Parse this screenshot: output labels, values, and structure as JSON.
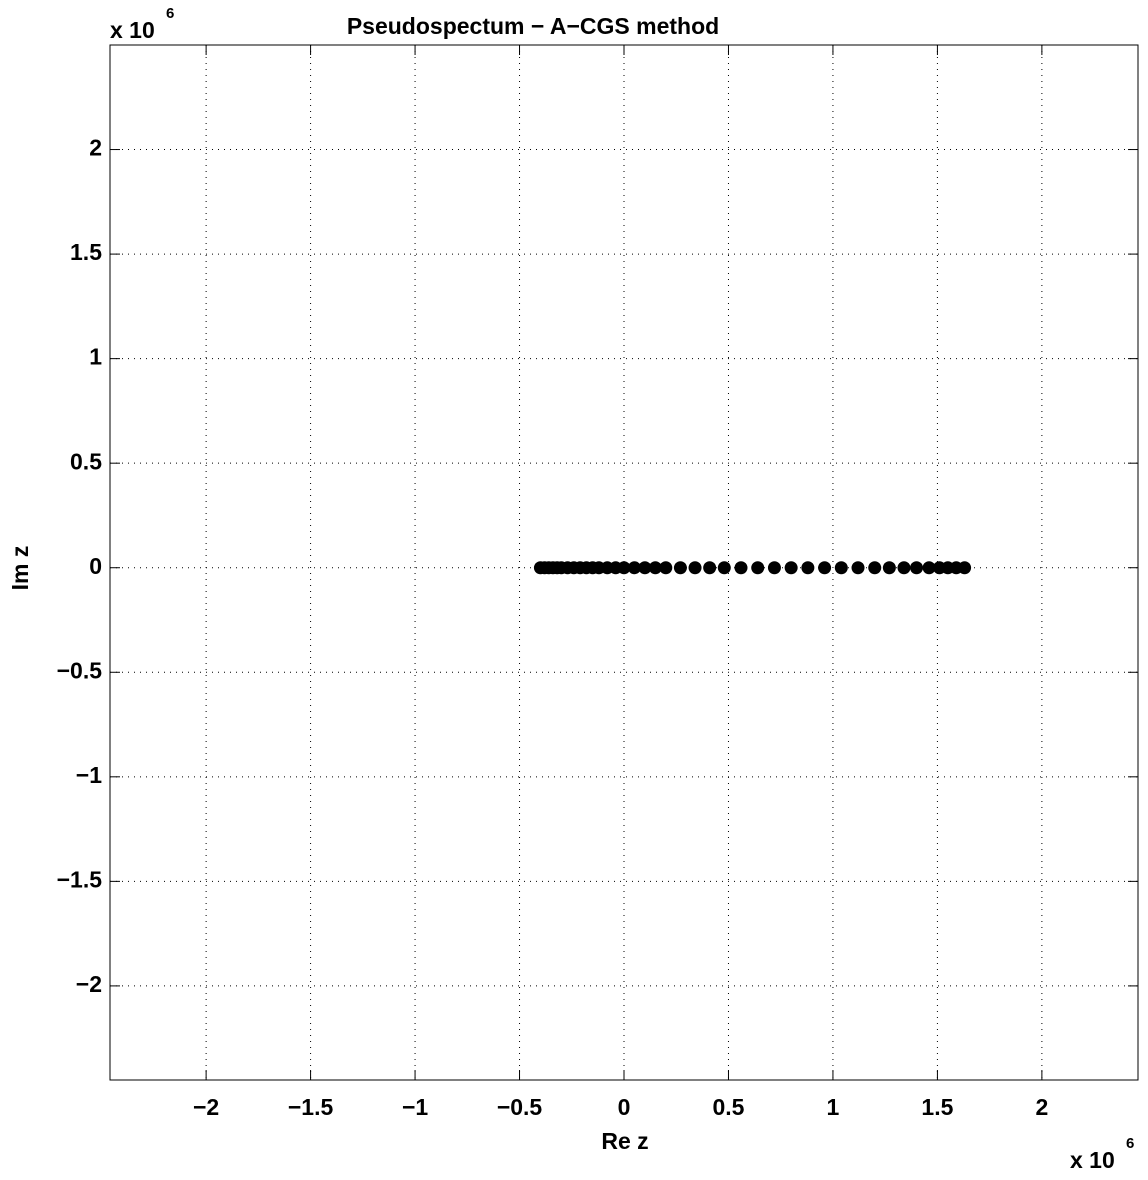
{
  "chart_data": {
    "type": "scatter",
    "title": "Pseudospectum − A−CGS method",
    "xlabel": "Re z",
    "ylabel": "Im z",
    "x_multiplier": {
      "base": "x 10",
      "exponent": "6"
    },
    "y_multiplier": {
      "base": "x 10",
      "exponent": "6"
    },
    "color": "#000000",
    "grid": true,
    "xlim": [
      -2.46,
      2.46
    ],
    "ylim": [
      -2.45,
      2.5
    ],
    "xticks": [
      {
        "value": -2,
        "label": "−2"
      },
      {
        "value": -1.5,
        "label": "−1.5"
      },
      {
        "value": -1,
        "label": "−1"
      },
      {
        "value": -0.5,
        "label": "−0.5"
      },
      0,
      0.5,
      1,
      1.5,
      2
    ],
    "yticks": [
      {
        "value": -2,
        "label": "−2"
      },
      {
        "value": -1.5,
        "label": "−1.5"
      },
      {
        "value": -1,
        "label": "−1"
      },
      {
        "value": -0.5,
        "label": "−0.5"
      },
      0,
      0.5,
      1,
      1.5,
      2
    ],
    "x": [
      -0.4,
      -0.38,
      -0.36,
      -0.34,
      -0.32,
      -0.3,
      -0.27,
      -0.24,
      -0.21,
      -0.18,
      -0.15,
      -0.12,
      -0.08,
      -0.04,
      0,
      0.05,
      0.1,
      0.15,
      0.2,
      0.27,
      0.34,
      0.41,
      0.48,
      0.56,
      0.64,
      0.72,
      0.8,
      0.88,
      0.96,
      1.04,
      1.12,
      1.2,
      1.27,
      1.34,
      1.4,
      1.46,
      1.51,
      1.55,
      1.59,
      1.63
    ],
    "y": [
      0,
      0,
      0,
      0,
      0,
      0,
      0,
      0,
      0,
      0,
      0,
      0,
      0,
      0,
      0,
      0,
      0,
      0,
      0,
      0,
      0,
      0,
      0,
      0,
      0,
      0,
      0,
      0,
      0,
      0,
      0,
      0,
      0,
      0,
      0,
      0,
      0,
      0,
      0,
      0
    ]
  }
}
